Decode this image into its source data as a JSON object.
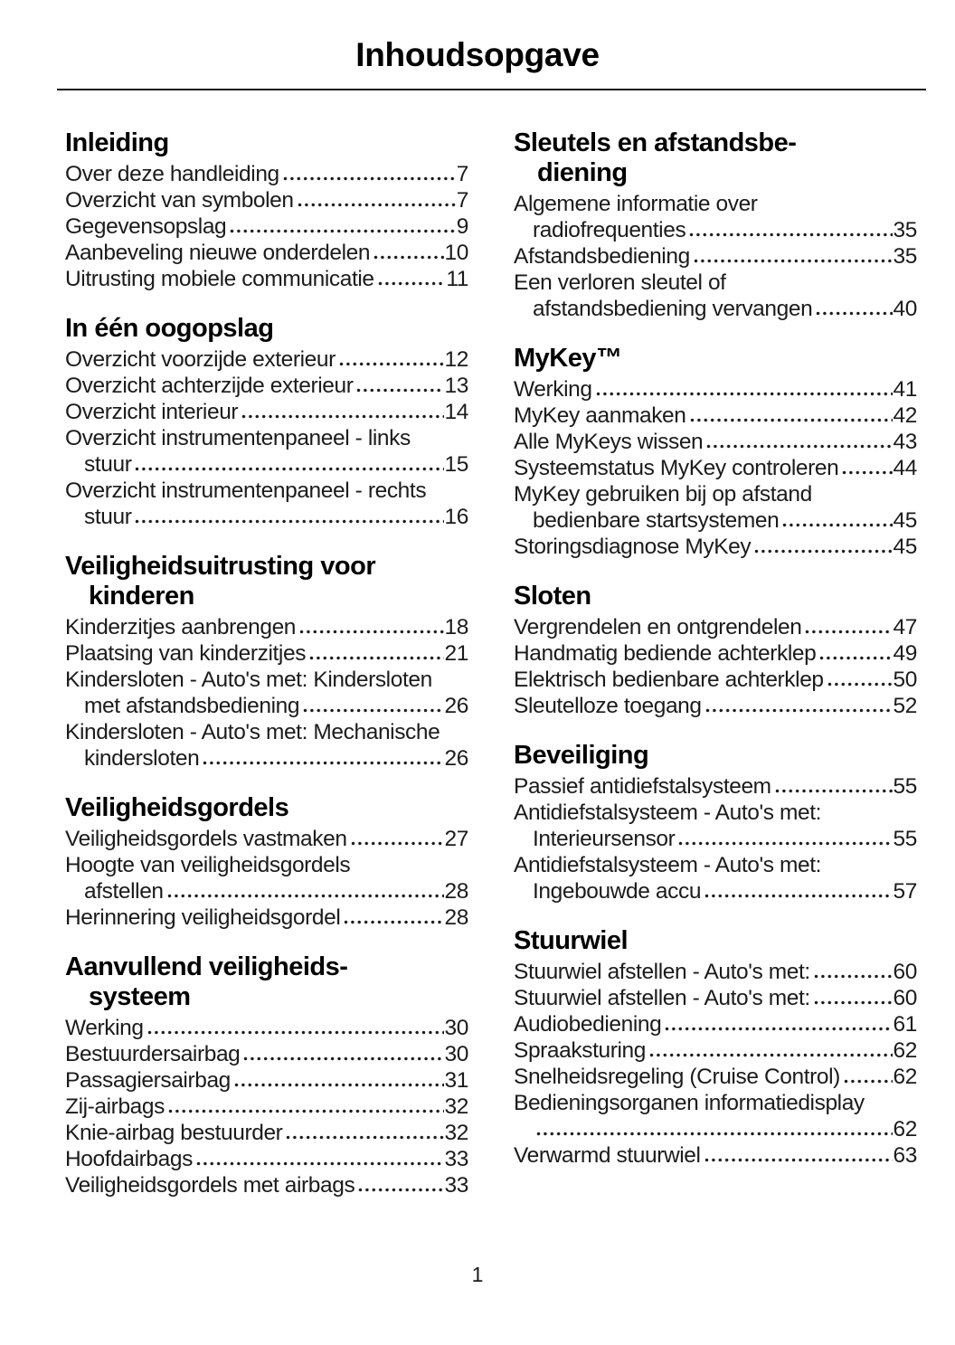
{
  "page": {
    "title": "Inhoudsopgave",
    "page_number": "1",
    "background_color": "#ffffff",
    "text_color": "#1b1b1b",
    "heading_color": "#000000"
  },
  "columns": [
    {
      "sections": [
        {
          "id": "inleiding",
          "heading_lines": [
            "Inleiding"
          ],
          "entries": [
            {
              "lines": [
                "Over deze handleiding"
              ],
              "page": "7"
            },
            {
              "lines": [
                "Overzicht van symbolen"
              ],
              "page": "7"
            },
            {
              "lines": [
                "Gegevensopslag"
              ],
              "page": "9"
            },
            {
              "lines": [
                "Aanbeveling nieuwe onderdelen"
              ],
              "page": "10"
            },
            {
              "lines": [
                "Uitrusting mobiele communicatie"
              ],
              "page": "11"
            }
          ]
        },
        {
          "id": "in-een-oogopslag",
          "heading_lines": [
            "In één oogopslag"
          ],
          "entries": [
            {
              "lines": [
                "Overzicht voorzijde exterieur"
              ],
              "page": "12"
            },
            {
              "lines": [
                "Overzicht achterzijde exterieur"
              ],
              "page": "13"
            },
            {
              "lines": [
                "Overzicht interieur"
              ],
              "page": "14"
            },
            {
              "lines": [
                "Overzicht instrumentenpaneel - links",
                "stuur"
              ],
              "page": "15"
            },
            {
              "lines": [
                "Overzicht instrumentenpaneel - rechts",
                "stuur"
              ],
              "page": "16"
            }
          ]
        },
        {
          "id": "veiligheidsuitrusting-voor-kinderen",
          "heading_lines": [
            "Veiligheidsuitrusting voor",
            "kinderen"
          ],
          "entries": [
            {
              "lines": [
                "Kinderzitjes aanbrengen"
              ],
              "page": "18"
            },
            {
              "lines": [
                "Plaatsing van kinderzitjes"
              ],
              "page": "21"
            },
            {
              "lines": [
                "Kindersloten - Auto's met: Kindersloten",
                "met afstandsbediening"
              ],
              "page": "26"
            },
            {
              "lines": [
                "Kindersloten - Auto's met: Mechanische",
                "kindersloten"
              ],
              "page": "26"
            }
          ]
        },
        {
          "id": "veiligheidsgordels",
          "heading_lines": [
            "Veiligheidsgordels"
          ],
          "entries": [
            {
              "lines": [
                "Veiligheidsgordels vastmaken"
              ],
              "page": "27"
            },
            {
              "lines": [
                "Hoogte van veiligheidsgordels",
                "afstellen"
              ],
              "page": "28"
            },
            {
              "lines": [
                "Herinnering veiligheidsgordel"
              ],
              "page": "28"
            }
          ]
        },
        {
          "id": "aanvullend-veiligheidssysteem",
          "heading_lines": [
            "Aanvullend veiligheids-",
            "systeem"
          ],
          "entries": [
            {
              "lines": [
                "Werking"
              ],
              "page": "30"
            },
            {
              "lines": [
                "Bestuurdersairbag"
              ],
              "page": "30"
            },
            {
              "lines": [
                "Passagiersairbag"
              ],
              "page": "31"
            },
            {
              "lines": [
                "Zij-airbags"
              ],
              "page": "32"
            },
            {
              "lines": [
                "Knie-airbag bestuurder"
              ],
              "page": "32"
            },
            {
              "lines": [
                "Hoofdairbags"
              ],
              "page": "33"
            },
            {
              "lines": [
                "Veiligheidsgordels met airbags"
              ],
              "page": "33"
            }
          ]
        }
      ]
    },
    {
      "sections": [
        {
          "id": "sleutels-en-afstandsbediening",
          "heading_lines": [
            "Sleutels en afstandsbe-",
            "diening"
          ],
          "entries": [
            {
              "lines": [
                "Algemene informatie over",
                "radiofrequenties"
              ],
              "page": "35"
            },
            {
              "lines": [
                "Afstandsbediening"
              ],
              "page": "35"
            },
            {
              "lines": [
                "Een verloren sleutel of",
                "afstandsbediening vervangen"
              ],
              "page": "40"
            }
          ]
        },
        {
          "id": "mykey",
          "heading_lines": [
            "MyKey™"
          ],
          "entries": [
            {
              "lines": [
                "Werking"
              ],
              "page": "41"
            },
            {
              "lines": [
                "MyKey aanmaken"
              ],
              "page": "42"
            },
            {
              "lines": [
                "Alle MyKeys wissen"
              ],
              "page": "43"
            },
            {
              "lines": [
                "Systeemstatus MyKey controleren"
              ],
              "page": "44"
            },
            {
              "lines": [
                "MyKey gebruiken bij op afstand",
                "bedienbare startsystemen"
              ],
              "page": "45"
            },
            {
              "lines": [
                "Storingsdiagnose MyKey"
              ],
              "page": "45"
            }
          ]
        },
        {
          "id": "sloten",
          "heading_lines": [
            "Sloten"
          ],
          "entries": [
            {
              "lines": [
                "Vergrendelen en ontgrendelen"
              ],
              "page": "47"
            },
            {
              "lines": [
                "Handmatig bediende achterklep"
              ],
              "page": "49"
            },
            {
              "lines": [
                "Elektrisch bedienbare achterklep"
              ],
              "page": "50"
            },
            {
              "lines": [
                "Sleutelloze toegang"
              ],
              "page": "52"
            }
          ]
        },
        {
          "id": "beveiliging",
          "heading_lines": [
            "Beveiliging"
          ],
          "entries": [
            {
              "lines": [
                "Passief antidiefstalsysteem"
              ],
              "page": "55"
            },
            {
              "lines": [
                "Antidiefstalsysteem - Auto's met:",
                "Interieursensor"
              ],
              "page": "55"
            },
            {
              "lines": [
                "Antidiefstalsysteem - Auto's met:",
                "Ingebouwde accu"
              ],
              "page": "57"
            }
          ]
        },
        {
          "id": "stuurwiel",
          "heading_lines": [
            "Stuurwiel"
          ],
          "entries": [
            {
              "lines": [
                "Stuurwiel afstellen - Auto's met:"
              ],
              "page": "60"
            },
            {
              "lines": [
                "Stuurwiel afstellen - Auto's met:"
              ],
              "page": "60"
            },
            {
              "lines": [
                "Audiobediening"
              ],
              "page": "61"
            },
            {
              "lines": [
                "Spraaksturing"
              ],
              "page": "62"
            },
            {
              "lines": [
                "Snelheidsregeling (Cruise Control)"
              ],
              "page": "62"
            },
            {
              "lines": [
                "Bedieningsorganen informatiedisplay",
                ""
              ],
              "page": "62"
            },
            {
              "lines": [
                "Verwarmd stuurwiel"
              ],
              "page": "63"
            }
          ]
        }
      ]
    }
  ]
}
